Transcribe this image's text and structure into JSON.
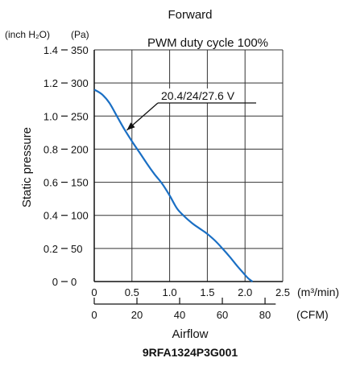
{
  "chart_data": {
    "type": "line",
    "title": "Forward",
    "subtitle": "PWM duty cycle 100%",
    "model": "9RFA1324P3G001",
    "xlabel": "Airflow",
    "ylabel": "Static pressure",
    "x_unit_primary": "(m³/min)",
    "x_unit_secondary": "(CFM)",
    "y_unit_primary": "(Pa)",
    "y_unit_secondary": "(inch H₂O)",
    "xlim": [
      0,
      2.5
    ],
    "ylim": [
      0,
      350
    ],
    "x_ticks": [
      "0",
      "0.5",
      "1.0",
      "1.5",
      "2.0",
      "2.5"
    ],
    "x_ticks_cfm": [
      "0",
      "20",
      "40",
      "60",
      "80"
    ],
    "y_ticks_pa": [
      "0",
      "50",
      "100",
      "150",
      "200",
      "250",
      "300",
      "350"
    ],
    "y_ticks_inch": [
      "0",
      "0.2",
      "0.4",
      "0.6",
      "0.8",
      "1.0",
      "1.2",
      "1.4"
    ],
    "grid": true,
    "series": [
      {
        "name": "20.4/24/27.6 V",
        "color": "#1a6fc4",
        "x": [
          0.0,
          0.1,
          0.2,
          0.3,
          0.4,
          0.5,
          0.6,
          0.7,
          0.8,
          0.9,
          1.0,
          1.1,
          1.2,
          1.3,
          1.4,
          1.5,
          1.6,
          1.7,
          1.8,
          1.9,
          2.0,
          2.05,
          2.1
        ],
        "y": [
          290,
          283,
          270,
          250,
          230,
          212,
          195,
          178,
          162,
          148,
          130,
          110,
          98,
          88,
          80,
          72,
          62,
          50,
          37,
          23,
          10,
          4,
          0
        ]
      }
    ],
    "annotation": {
      "text": "20.4/24/27.6 V",
      "target_x": 0.4,
      "target_y": 225
    }
  }
}
